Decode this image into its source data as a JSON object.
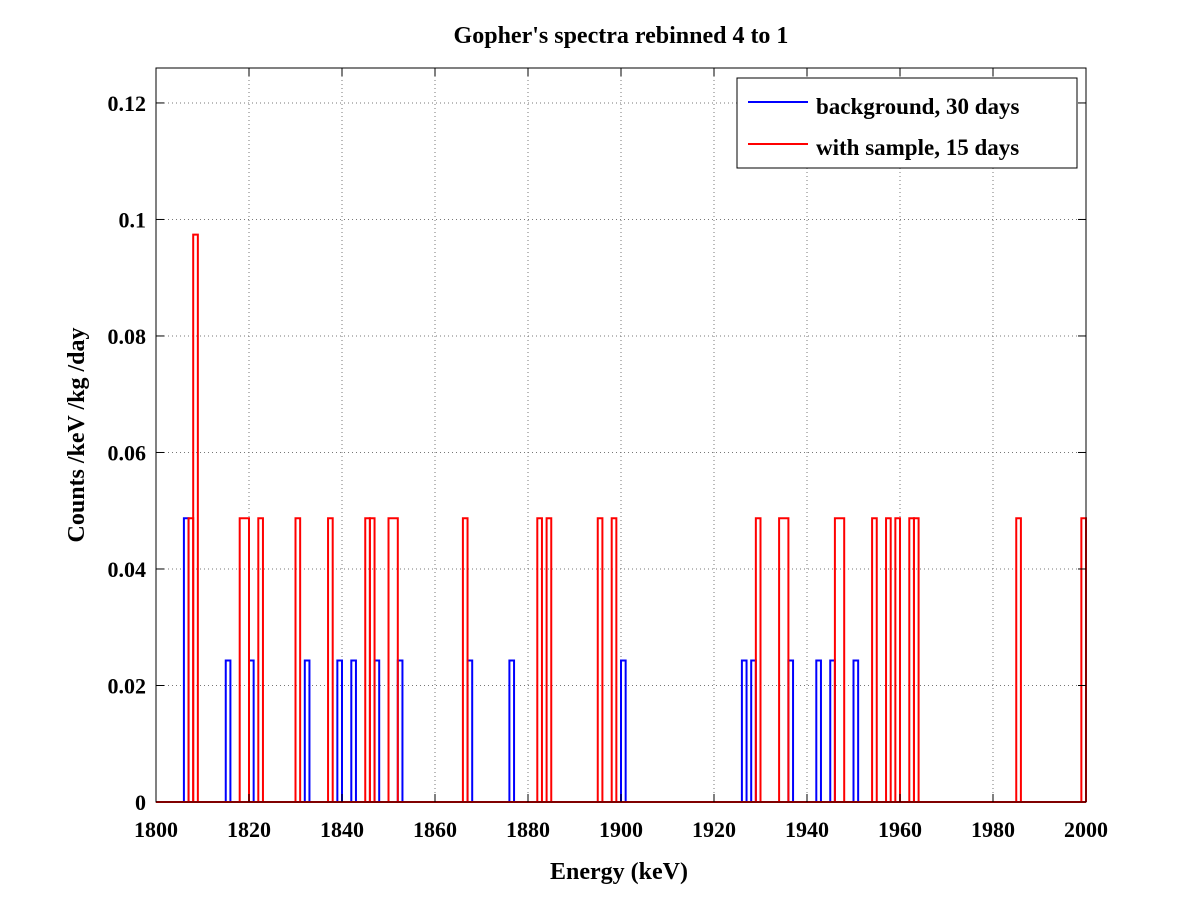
{
  "chart_data": {
    "type": "line",
    "title": "Gopher's spectra rebinned 4 to 1",
    "xlabel": "Energy (keV)",
    "ylabel": "Counts /keV /kg /day",
    "xlim": [
      1800,
      2000
    ],
    "ylim": [
      0,
      0.126
    ],
    "x_ticks": [
      1800,
      1820,
      1840,
      1860,
      1880,
      1900,
      1920,
      1940,
      1960,
      1980,
      2000
    ],
    "x_tick_labels": [
      "1800",
      "1820",
      "1840",
      "1860",
      "1880",
      "1900",
      "1920",
      "1940",
      "1960",
      "1980",
      "2000"
    ],
    "y_ticks": [
      0,
      0.02,
      0.04,
      0.06,
      0.08,
      0.1,
      0.12
    ],
    "y_tick_labels": [
      "0",
      "0.02",
      "0.04",
      "0.06",
      "0.08",
      "0.1",
      "0.12"
    ],
    "grid": true,
    "legend_position": "top-right",
    "step": "histogram",
    "series": [
      {
        "name": "background, 30 days",
        "color": "#0000ff",
        "bins": [
          {
            "x0": 1806,
            "x1": 1807,
            "y": 0.0487
          },
          {
            "x0": 1815,
            "x1": 1816,
            "y": 0.0243
          },
          {
            "x0": 1820,
            "x1": 1821,
            "y": 0.0243
          },
          {
            "x0": 1832,
            "x1": 1833,
            "y": 0.0243
          },
          {
            "x0": 1839,
            "x1": 1840,
            "y": 0.0243
          },
          {
            "x0": 1842,
            "x1": 1843,
            "y": 0.0243
          },
          {
            "x0": 1847,
            "x1": 1848,
            "y": 0.0243
          },
          {
            "x0": 1852,
            "x1": 1853,
            "y": 0.0243
          },
          {
            "x0": 1867,
            "x1": 1868,
            "y": 0.0243
          },
          {
            "x0": 1876,
            "x1": 1877,
            "y": 0.0243
          },
          {
            "x0": 1900,
            "x1": 1901,
            "y": 0.0243
          },
          {
            "x0": 1926,
            "x1": 1927,
            "y": 0.0243
          },
          {
            "x0": 1928,
            "x1": 1929,
            "y": 0.0243
          },
          {
            "x0": 1936,
            "x1": 1937,
            "y": 0.0243
          },
          {
            "x0": 1942,
            "x1": 1943,
            "y": 0.0243
          },
          {
            "x0": 1945,
            "x1": 1946,
            "y": 0.0243
          },
          {
            "x0": 1950,
            "x1": 1951,
            "y": 0.0243
          }
        ]
      },
      {
        "name": "with sample, 15 days",
        "color": "#ff0000",
        "bins": [
          {
            "x0": 1807,
            "x1": 1808,
            "y": 0.0487
          },
          {
            "x0": 1808,
            "x1": 1809,
            "y": 0.0974
          },
          {
            "x0": 1818,
            "x1": 1820,
            "y": 0.0487
          },
          {
            "x0": 1822,
            "x1": 1823,
            "y": 0.0487
          },
          {
            "x0": 1830,
            "x1": 1831,
            "y": 0.0487
          },
          {
            "x0": 1837,
            "x1": 1838,
            "y": 0.0487
          },
          {
            "x0": 1845,
            "x1": 1846,
            "y": 0.0487
          },
          {
            "x0": 1846,
            "x1": 1847,
            "y": 0.0487
          },
          {
            "x0": 1850,
            "x1": 1852,
            "y": 0.0487
          },
          {
            "x0": 1866,
            "x1": 1867,
            "y": 0.0487
          },
          {
            "x0": 1882,
            "x1": 1883,
            "y": 0.0487
          },
          {
            "x0": 1884,
            "x1": 1885,
            "y": 0.0487
          },
          {
            "x0": 1895,
            "x1": 1896,
            "y": 0.0487
          },
          {
            "x0": 1898,
            "x1": 1899,
            "y": 0.0487
          },
          {
            "x0": 1929,
            "x1": 1930,
            "y": 0.0487
          },
          {
            "x0": 1934,
            "x1": 1936,
            "y": 0.0487
          },
          {
            "x0": 1946,
            "x1": 1948,
            "y": 0.0487
          },
          {
            "x0": 1954,
            "x1": 1955,
            "y": 0.0487
          },
          {
            "x0": 1957,
            "x1": 1958,
            "y": 0.0487
          },
          {
            "x0": 1959,
            "x1": 1960,
            "y": 0.0487
          },
          {
            "x0": 1962,
            "x1": 1963,
            "y": 0.0487
          },
          {
            "x0": 1963,
            "x1": 1964,
            "y": 0.0487
          },
          {
            "x0": 1985,
            "x1": 1986,
            "y": 0.0487
          },
          {
            "x0": 1999,
            "x1": 2000,
            "y": 0.0487
          }
        ]
      }
    ]
  }
}
